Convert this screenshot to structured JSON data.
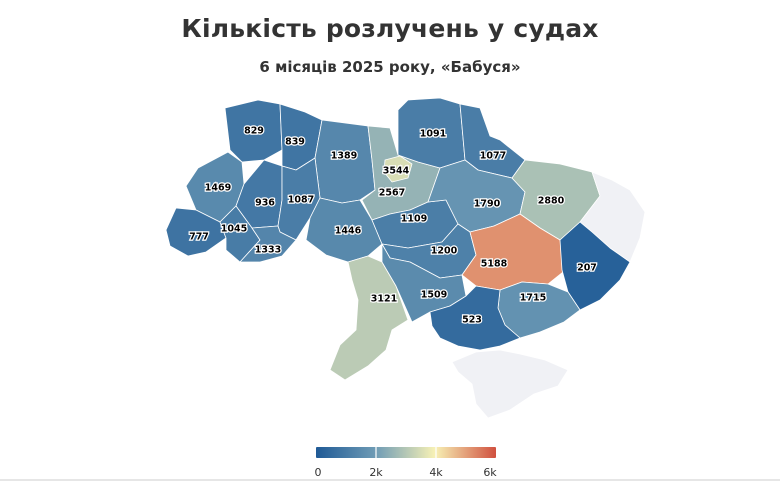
{
  "header": {
    "title": "Кількість розлучень у судах",
    "subtitle": "6 місяців 2025 року, «Бабуся»"
  },
  "color_scale": {
    "min": 0,
    "max": 6000,
    "stops": [
      "#1f5a96",
      "#6e9bb5",
      "#f7f1b5",
      "#d0503f"
    ],
    "no_data_color": "#f0f1f5",
    "ticks": [
      {
        "value": 0,
        "label": "0"
      },
      {
        "value": 2000,
        "label": "2k"
      },
      {
        "value": 4000,
        "label": "4k"
      },
      {
        "value": 6000,
        "label": "6k"
      }
    ]
  },
  "regions": [
    {
      "id": "volyn",
      "value": 829,
      "label": "829"
    },
    {
      "id": "rivne",
      "value": 839,
      "label": "839"
    },
    {
      "id": "zhytomyr",
      "value": 1389,
      "label": "1389"
    },
    {
      "id": "kyiv-city",
      "value": 3544,
      "label": "3544"
    },
    {
      "id": "kyiv-oblast",
      "value": 2567,
      "label": "2567"
    },
    {
      "id": "chernihiv",
      "value": 1091,
      "label": "1091"
    },
    {
      "id": "sumy",
      "value": 1077,
      "label": "1077"
    },
    {
      "id": "lviv",
      "value": 1469,
      "label": "1469"
    },
    {
      "id": "ternopil",
      "value": 936,
      "label": "936"
    },
    {
      "id": "khmelnytskyi",
      "value": 1087,
      "label": "1087"
    },
    {
      "id": "vinnytsia",
      "value": 1446,
      "label": "1446"
    },
    {
      "id": "cherkasy",
      "value": 1109,
      "label": "1109"
    },
    {
      "id": "poltava",
      "value": 1790,
      "label": "1790"
    },
    {
      "id": "kharkiv",
      "value": 2880,
      "label": "2880"
    },
    {
      "id": "luhansk",
      "value": null,
      "label": ""
    },
    {
      "id": "zakarpattia",
      "value": 777,
      "label": "777"
    },
    {
      "id": "ivano-frankivsk",
      "value": 1045,
      "label": "1045"
    },
    {
      "id": "chernivtsi",
      "value": 1333,
      "label": "1333"
    },
    {
      "id": "kirovohrad",
      "value": 1200,
      "label": "1200"
    },
    {
      "id": "dnipropetrovsk",
      "value": 5188,
      "label": "5188"
    },
    {
      "id": "donetsk",
      "value": 207,
      "label": "207"
    },
    {
      "id": "odesa",
      "value": 3121,
      "label": "3121"
    },
    {
      "id": "mykolaiv",
      "value": 1509,
      "label": "1509"
    },
    {
      "id": "zaporizhzhia",
      "value": 1715,
      "label": "1715"
    },
    {
      "id": "kherson",
      "value": 523,
      "label": "523"
    },
    {
      "id": "crimea",
      "value": null,
      "label": ""
    }
  ]
}
